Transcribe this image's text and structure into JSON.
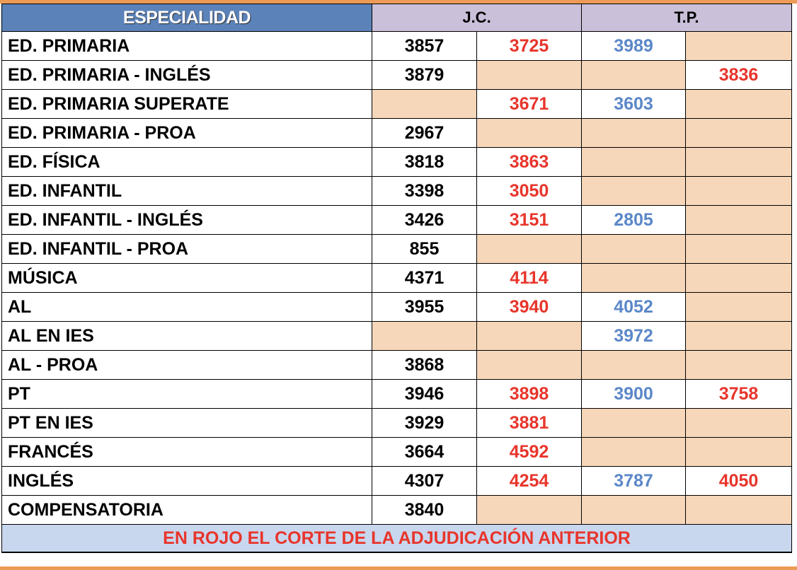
{
  "header": {
    "especialidad": "ESPECIALIDAD",
    "group1": "J.C.",
    "group2": "T.P."
  },
  "rows": [
    {
      "name": "ED. PRIMARIA",
      "values": [
        "3857",
        "3725",
        "3989",
        ""
      ]
    },
    {
      "name": "ED. PRIMARIA - INGLÉS",
      "values": [
        "3879",
        "",
        "",
        "3836"
      ]
    },
    {
      "name": "ED. PRIMARIA SUPERATE",
      "values": [
        "",
        "3671",
        "3603",
        ""
      ]
    },
    {
      "name": "ED. PRIMARIA - PROA",
      "values": [
        "2967",
        "",
        "",
        ""
      ]
    },
    {
      "name": "ED. FÍSICA",
      "values": [
        "3818",
        "3863",
        "",
        ""
      ]
    },
    {
      "name": "ED. INFANTIL",
      "values": [
        "3398",
        "3050",
        "",
        ""
      ]
    },
    {
      "name": "ED. INFANTIL - INGLÉS",
      "values": [
        "3426",
        "3151",
        "2805",
        ""
      ]
    },
    {
      "name": "ED. INFANTIL - PROA",
      "values": [
        "855",
        "",
        "",
        ""
      ]
    },
    {
      "name": "MÚSICA",
      "values": [
        "4371",
        "4114",
        "",
        ""
      ]
    },
    {
      "name": "AL",
      "values": [
        "3955",
        "3940",
        "4052",
        ""
      ]
    },
    {
      "name": "AL EN IES",
      "values": [
        "",
        "",
        "3972",
        ""
      ]
    },
    {
      "name": "AL - PROA",
      "values": [
        "3868",
        "",
        "",
        ""
      ]
    },
    {
      "name": "PT",
      "values": [
        "3946",
        "3898",
        "3900",
        "3758"
      ]
    },
    {
      "name": "PT EN IES",
      "values": [
        "3929",
        "3881",
        "",
        ""
      ]
    },
    {
      "name": "FRANCÉS",
      "values": [
        "3664",
        "4592",
        "",
        ""
      ]
    },
    {
      "name": "INGLÉS",
      "values": [
        "4307",
        "4254",
        "3787",
        "4050"
      ]
    },
    {
      "name": "COMPENSATORIA",
      "values": [
        "3840",
        "",
        "",
        ""
      ]
    }
  ],
  "footer": "EN ROJO EL CORTE DE LA ADJUDICACIÓN ANTERIOR",
  "colors": {
    "header_blue": "#5b82b9",
    "header_lilac": "#cac0d9",
    "empty_peach": "#f6d7b9",
    "red": "#e8352b",
    "blue": "#5b87c8",
    "footer_bg": "#c8d7ee",
    "band_orange": "#eb9b55"
  }
}
